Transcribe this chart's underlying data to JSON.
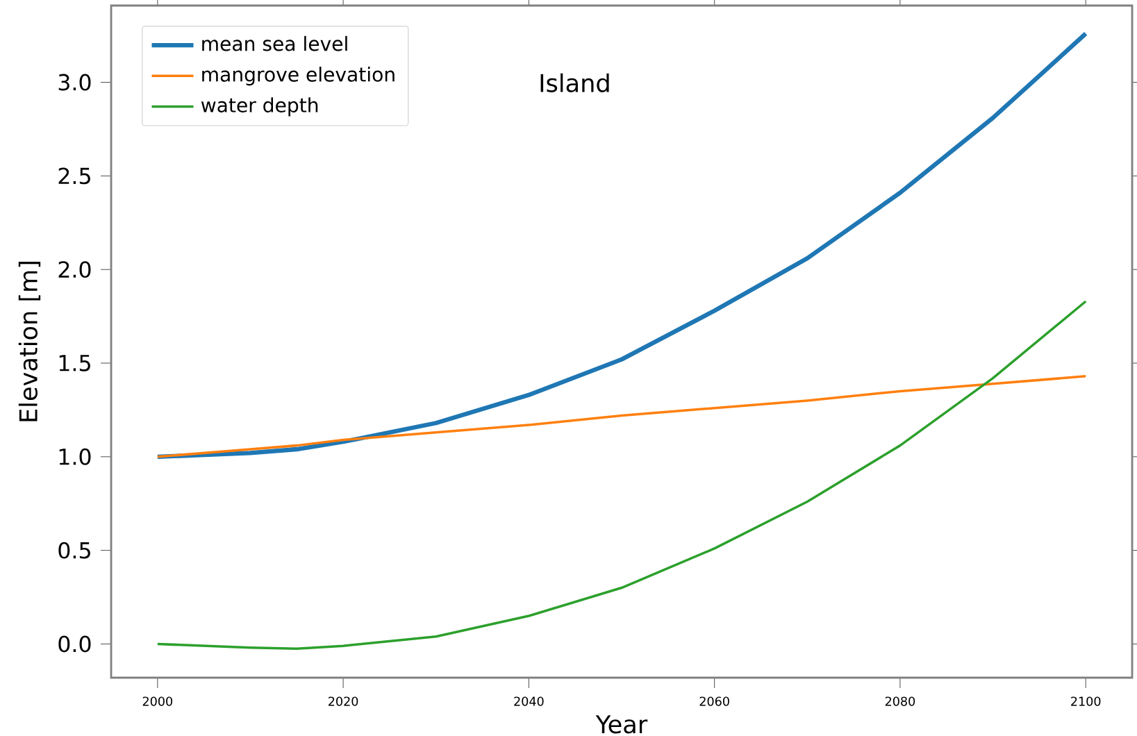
{
  "chart_data": {
    "type": "line",
    "xlabel": "Year",
    "ylabel": "Elevation [m]",
    "annotations": [
      "Island"
    ],
    "x": [
      2000,
      2010,
      2015,
      2020,
      2030,
      2040,
      2050,
      2060,
      2070,
      2080,
      2090,
      2100
    ],
    "series": [
      {
        "name": "mean sea level",
        "color": "#1f77b4",
        "values": [
          1.0,
          1.02,
          1.04,
          1.08,
          1.18,
          1.33,
          1.52,
          1.78,
          2.06,
          2.41,
          2.81,
          3.26
        ]
      },
      {
        "name": "mangrove elevation",
        "color": "#ff7f0e",
        "values": [
          1.0,
          1.04,
          1.06,
          1.09,
          1.13,
          1.17,
          1.22,
          1.26,
          1.3,
          1.35,
          1.39,
          1.43
        ]
      },
      {
        "name": "water depth",
        "color": "#2ca02c",
        "values": [
          0.0,
          -0.02,
          -0.025,
          -0.01,
          0.04,
          0.15,
          0.3,
          0.51,
          0.76,
          1.06,
          1.42,
          1.83
        ]
      }
    ],
    "xlim": [
      1995,
      2105
    ],
    "ylim": [
      -0.18,
      3.41
    ],
    "xticks": [
      2000,
      2020,
      2040,
      2060,
      2080,
      2100
    ],
    "yticks": [
      {
        "value": 0,
        "label": "0.0"
      },
      {
        "value": 0.5,
        "label": "0.5"
      },
      {
        "value": 1,
        "label": "1.0"
      },
      {
        "value": 1.5,
        "label": "1.5"
      },
      {
        "value": 2,
        "label": "2.0"
      },
      {
        "value": 2.5,
        "label": "2.5"
      },
      {
        "value": 3,
        "label": "3.0"
      }
    ],
    "legend": "top left",
    "grid": false,
    "marker": "none",
    "line_style": "solid"
  }
}
